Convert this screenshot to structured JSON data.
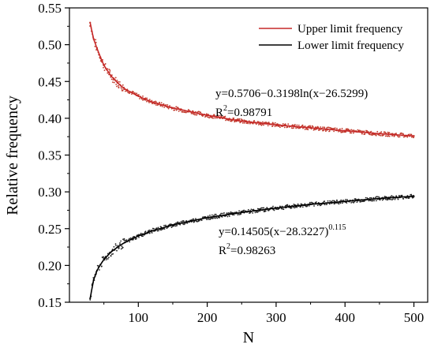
{
  "chart_data": {
    "type": "scatter",
    "xlabel": "N",
    "ylabel": "Relative frequency",
    "xlim": [
      0,
      520
    ],
    "ylim": [
      0.15,
      0.55
    ],
    "xticks": [
      "100",
      "200",
      "300",
      "400",
      "500"
    ],
    "xtick_values": [
      100,
      200,
      300,
      400,
      500
    ],
    "yticks": [
      "0.15",
      "0.20",
      "0.25",
      "0.30",
      "0.35",
      "0.40",
      "0.45",
      "0.50",
      "0.55"
    ],
    "ytick_values": [
      0.15,
      0.2,
      0.25,
      0.3,
      0.35,
      0.4,
      0.45,
      0.5,
      0.55
    ],
    "legend_position": "top-right",
    "grid": false,
    "series": [
      {
        "name": "Upper limit frequency",
        "color": "#c0392b",
        "fit_color": "#c62828",
        "x": [
          30,
          35,
          40,
          45,
          50,
          60,
          70,
          80,
          100,
          120,
          150,
          200,
          250,
          300,
          350,
          400,
          450,
          500
        ],
        "y": [
          0.53,
          0.508,
          0.495,
          0.483,
          0.472,
          0.458,
          0.448,
          0.44,
          0.43,
          0.422,
          0.414,
          0.404,
          0.396,
          0.391,
          0.387,
          0.383,
          0.379,
          0.376
        ]
      },
      {
        "name": "Lower limit frequency",
        "color": "#222222",
        "fit_color": "#000000",
        "x": [
          30,
          35,
          40,
          45,
          50,
          60,
          70,
          80,
          100,
          120,
          150,
          200,
          250,
          300,
          350,
          400,
          450,
          500
        ],
        "y": [
          0.155,
          0.18,
          0.193,
          0.201,
          0.208,
          0.218,
          0.225,
          0.231,
          0.24,
          0.247,
          0.255,
          0.265,
          0.272,
          0.278,
          0.283,
          0.287,
          0.291,
          0.294
        ]
      }
    ],
    "annotations": [
      {
        "line1": "y=0.5706−0.3198ln(x−26.5299)",
        "r2_prefix": "R",
        "r2_sup": "2",
        "r2_value": "=0.98791"
      },
      {
        "line1": "y=0.14505(x−28.3227)",
        "line1_sup": "0.115",
        "r2_prefix": "R",
        "r2_sup": "2",
        "r2_value": "=0.98263"
      }
    ]
  }
}
